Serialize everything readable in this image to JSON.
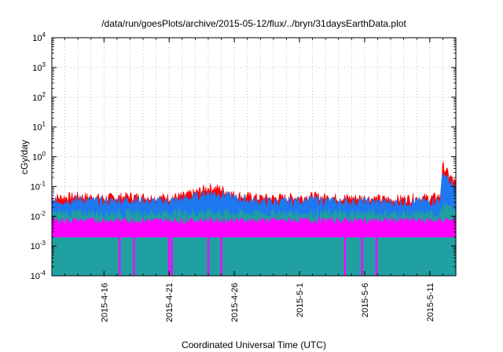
{
  "chart_data": {
    "type": "area",
    "title": "/data/run/goesPlots/archive/2015-05-12/flux/../bryn/31daysEarthData.plot",
    "xlabel": "Coordinated Universal Time (UTC)",
    "ylabel": "cGy/day",
    "yscale": "log",
    "ylim": [
      0.0001,
      10000
    ],
    "xlim": [
      "2015-04-12",
      "2015-05-13"
    ],
    "grid": true,
    "x_ticks": [
      {
        "date": "2015-04-16",
        "label": "2015-4-16"
      },
      {
        "date": "2015-04-21",
        "label": "2015-4-21"
      },
      {
        "date": "2015-04-26",
        "label": "2015-4-26"
      },
      {
        "date": "2015-05-01",
        "label": "2015-5-1"
      },
      {
        "date": "2015-05-06",
        "label": "2015-5-6"
      },
      {
        "date": "2015-05-11",
        "label": "2015-5-11"
      }
    ],
    "y_ticks": [
      {
        "value": 0.0001,
        "base": "10",
        "exp": "-4"
      },
      {
        "value": 0.001,
        "base": "10",
        "exp": "-3"
      },
      {
        "value": 0.01,
        "base": "10",
        "exp": "-2"
      },
      {
        "value": 0.1,
        "base": "10",
        "exp": "-1"
      },
      {
        "value": 1,
        "base": "10",
        "exp": "0"
      },
      {
        "value": 10,
        "base": "10",
        "exp": "1"
      },
      {
        "value": 100,
        "base": "10",
        "exp": "2"
      },
      {
        "value": 1000,
        "base": "10",
        "exp": "3"
      },
      {
        "value": 10000,
        "base": "10",
        "exp": "4"
      }
    ],
    "series": [
      {
        "color": "#ff0000",
        "x": [
          "2015-04-12",
          "2015-04-14",
          "2015-04-16",
          "2015-04-18",
          "2015-04-20",
          "2015-04-22",
          "2015-04-23",
          "2015-04-24",
          "2015-04-25",
          "2015-04-26",
          "2015-04-28",
          "2015-04-30",
          "2015-05-02",
          "2015-05-04",
          "2015-05-06",
          "2015-05-08",
          "2015-05-10",
          "2015-05-11",
          "2015-05-11.8",
          "2015-05-12",
          "2015-05-12.3",
          "2015-05-12.6",
          "2015-05-13"
        ],
        "values": [
          0.04,
          0.045,
          0.04,
          0.045,
          0.04,
          0.045,
          0.06,
          0.09,
          0.08,
          0.05,
          0.04,
          0.04,
          0.045,
          0.04,
          0.04,
          0.035,
          0.04,
          0.04,
          0.045,
          0.5,
          0.3,
          0.2,
          0.12
        ]
      },
      {
        "color": "#1e78f0",
        "x": [
          "2015-04-12",
          "2015-04-14",
          "2015-04-16",
          "2015-04-18",
          "2015-04-20",
          "2015-04-22",
          "2015-04-23",
          "2015-04-24",
          "2015-04-25",
          "2015-04-26",
          "2015-04-28",
          "2015-04-30",
          "2015-05-02",
          "2015-05-04",
          "2015-05-06",
          "2015-05-08",
          "2015-05-10",
          "2015-05-11",
          "2015-05-11.8",
          "2015-05-12",
          "2015-05-12.3",
          "2015-05-12.6",
          "2015-05-13"
        ],
        "values": [
          0.03,
          0.035,
          0.03,
          0.035,
          0.03,
          0.035,
          0.045,
          0.06,
          0.055,
          0.04,
          0.03,
          0.03,
          0.035,
          0.03,
          0.03,
          0.028,
          0.03,
          0.03,
          0.035,
          0.3,
          0.2,
          0.12,
          0.08
        ]
      },
      {
        "color": "#20a0a0",
        "x": [
          "2015-04-12",
          "2015-04-16",
          "2015-04-20",
          "2015-04-24",
          "2015-04-28",
          "2015-05-02",
          "2015-05-06",
          "2015-05-10",
          "2015-05-11.8",
          "2015-05-12",
          "2015-05-13"
        ],
        "values": [
          0.012,
          0.012,
          0.012,
          0.013,
          0.012,
          0.012,
          0.012,
          0.011,
          0.012,
          0.02,
          0.018
        ]
      },
      {
        "color": "#ff00ff",
        "x": [
          "2015-04-12",
          "2015-04-16",
          "2015-04-20",
          "2015-04-24",
          "2015-04-28",
          "2015-05-02",
          "2015-05-06",
          "2015-05-10",
          "2015-05-13"
        ],
        "values": [
          0.007,
          0.007,
          0.007,
          0.007,
          0.007,
          0.007,
          0.007,
          0.007,
          0.007
        ],
        "floor": 0.002,
        "dropouts": [
          "2015-04-17.2",
          "2015-04-18.3",
          "2015-04-21.0",
          "2015-04-21.2",
          "2015-04-24.0",
          "2015-04-25.0",
          "2015-05-04.5",
          "2015-05-05.8",
          "2015-05-06.9"
        ]
      }
    ]
  }
}
